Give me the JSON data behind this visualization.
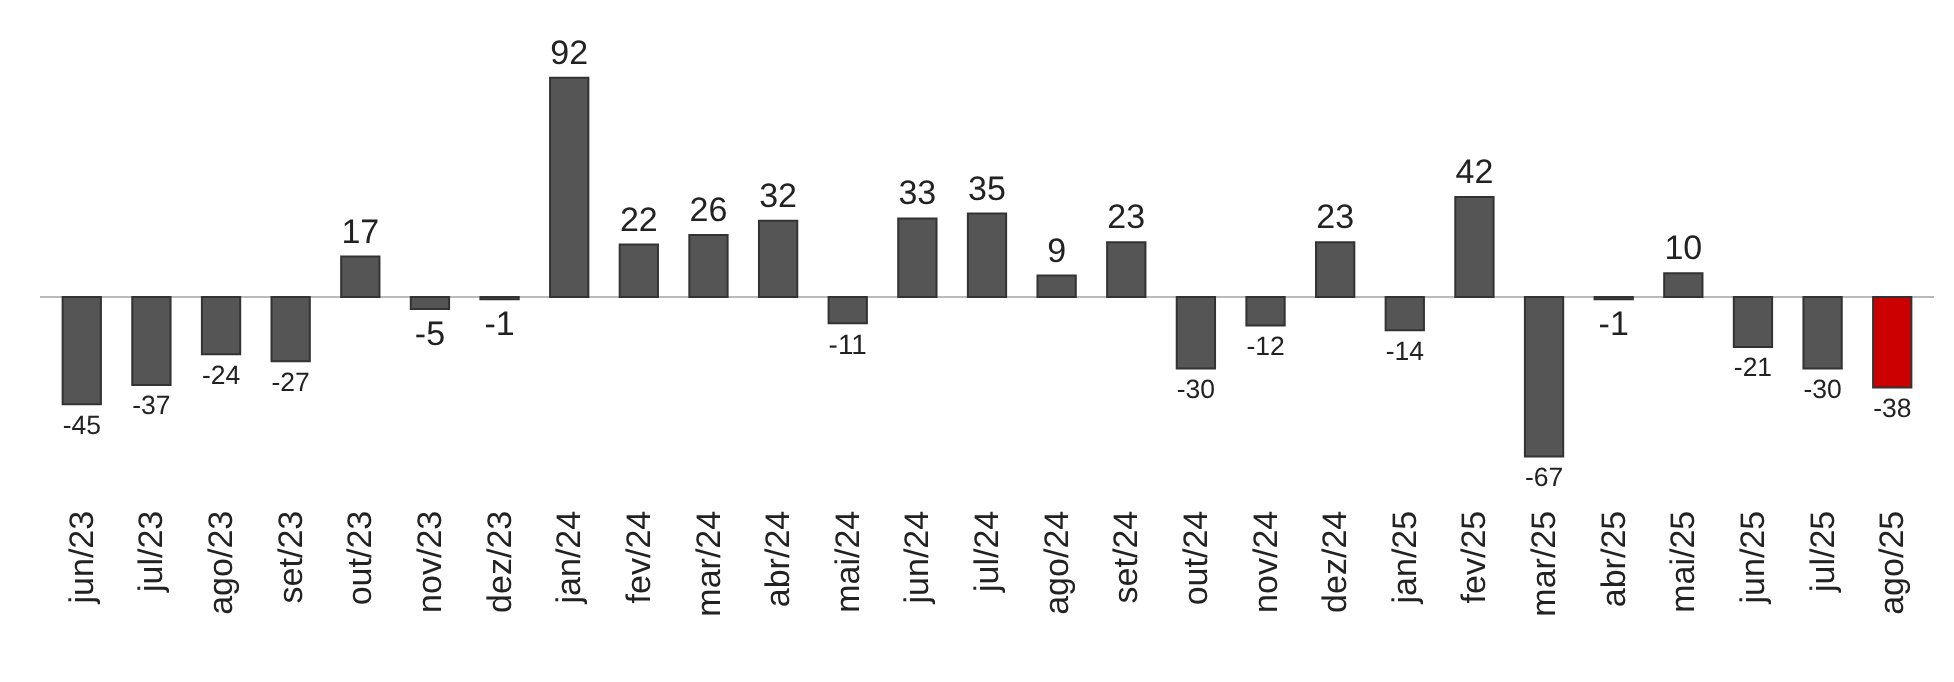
{
  "chart_data": {
    "type": "bar",
    "categories": [
      "jun/23",
      "jul/23",
      "ago/23",
      "set/23",
      "out/23",
      "nov/23",
      "dez/23",
      "jan/24",
      "fev/24",
      "mar/24",
      "abr/24",
      "mai/24",
      "jun/24",
      "jul/24",
      "ago/24",
      "set/24",
      "out/24",
      "nov/24",
      "dez/24",
      "jan/25",
      "fev/25",
      "mar/25",
      "abr/25",
      "mai/25",
      "jun/25",
      "jul/25",
      "ago/25"
    ],
    "values": [
      -45,
      -37,
      -24,
      -27,
      17,
      -5,
      -1,
      92,
      22,
      26,
      32,
      -11,
      33,
      35,
      9,
      23,
      -30,
      -12,
      23,
      -14,
      42,
      -67,
      -1,
      10,
      -21,
      -30,
      -38
    ],
    "colors": [
      "#555555",
      "#555555",
      "#555555",
      "#555555",
      "#555555",
      "#555555",
      "#555555",
      "#555555",
      "#555555",
      "#555555",
      "#555555",
      "#555555",
      "#555555",
      "#555555",
      "#555555",
      "#555555",
      "#555555",
      "#555555",
      "#555555",
      "#555555",
      "#555555",
      "#555555",
      "#555555",
      "#555555",
      "#555555",
      "#555555",
      "#cc0000"
    ],
    "data_labels": true
  }
}
